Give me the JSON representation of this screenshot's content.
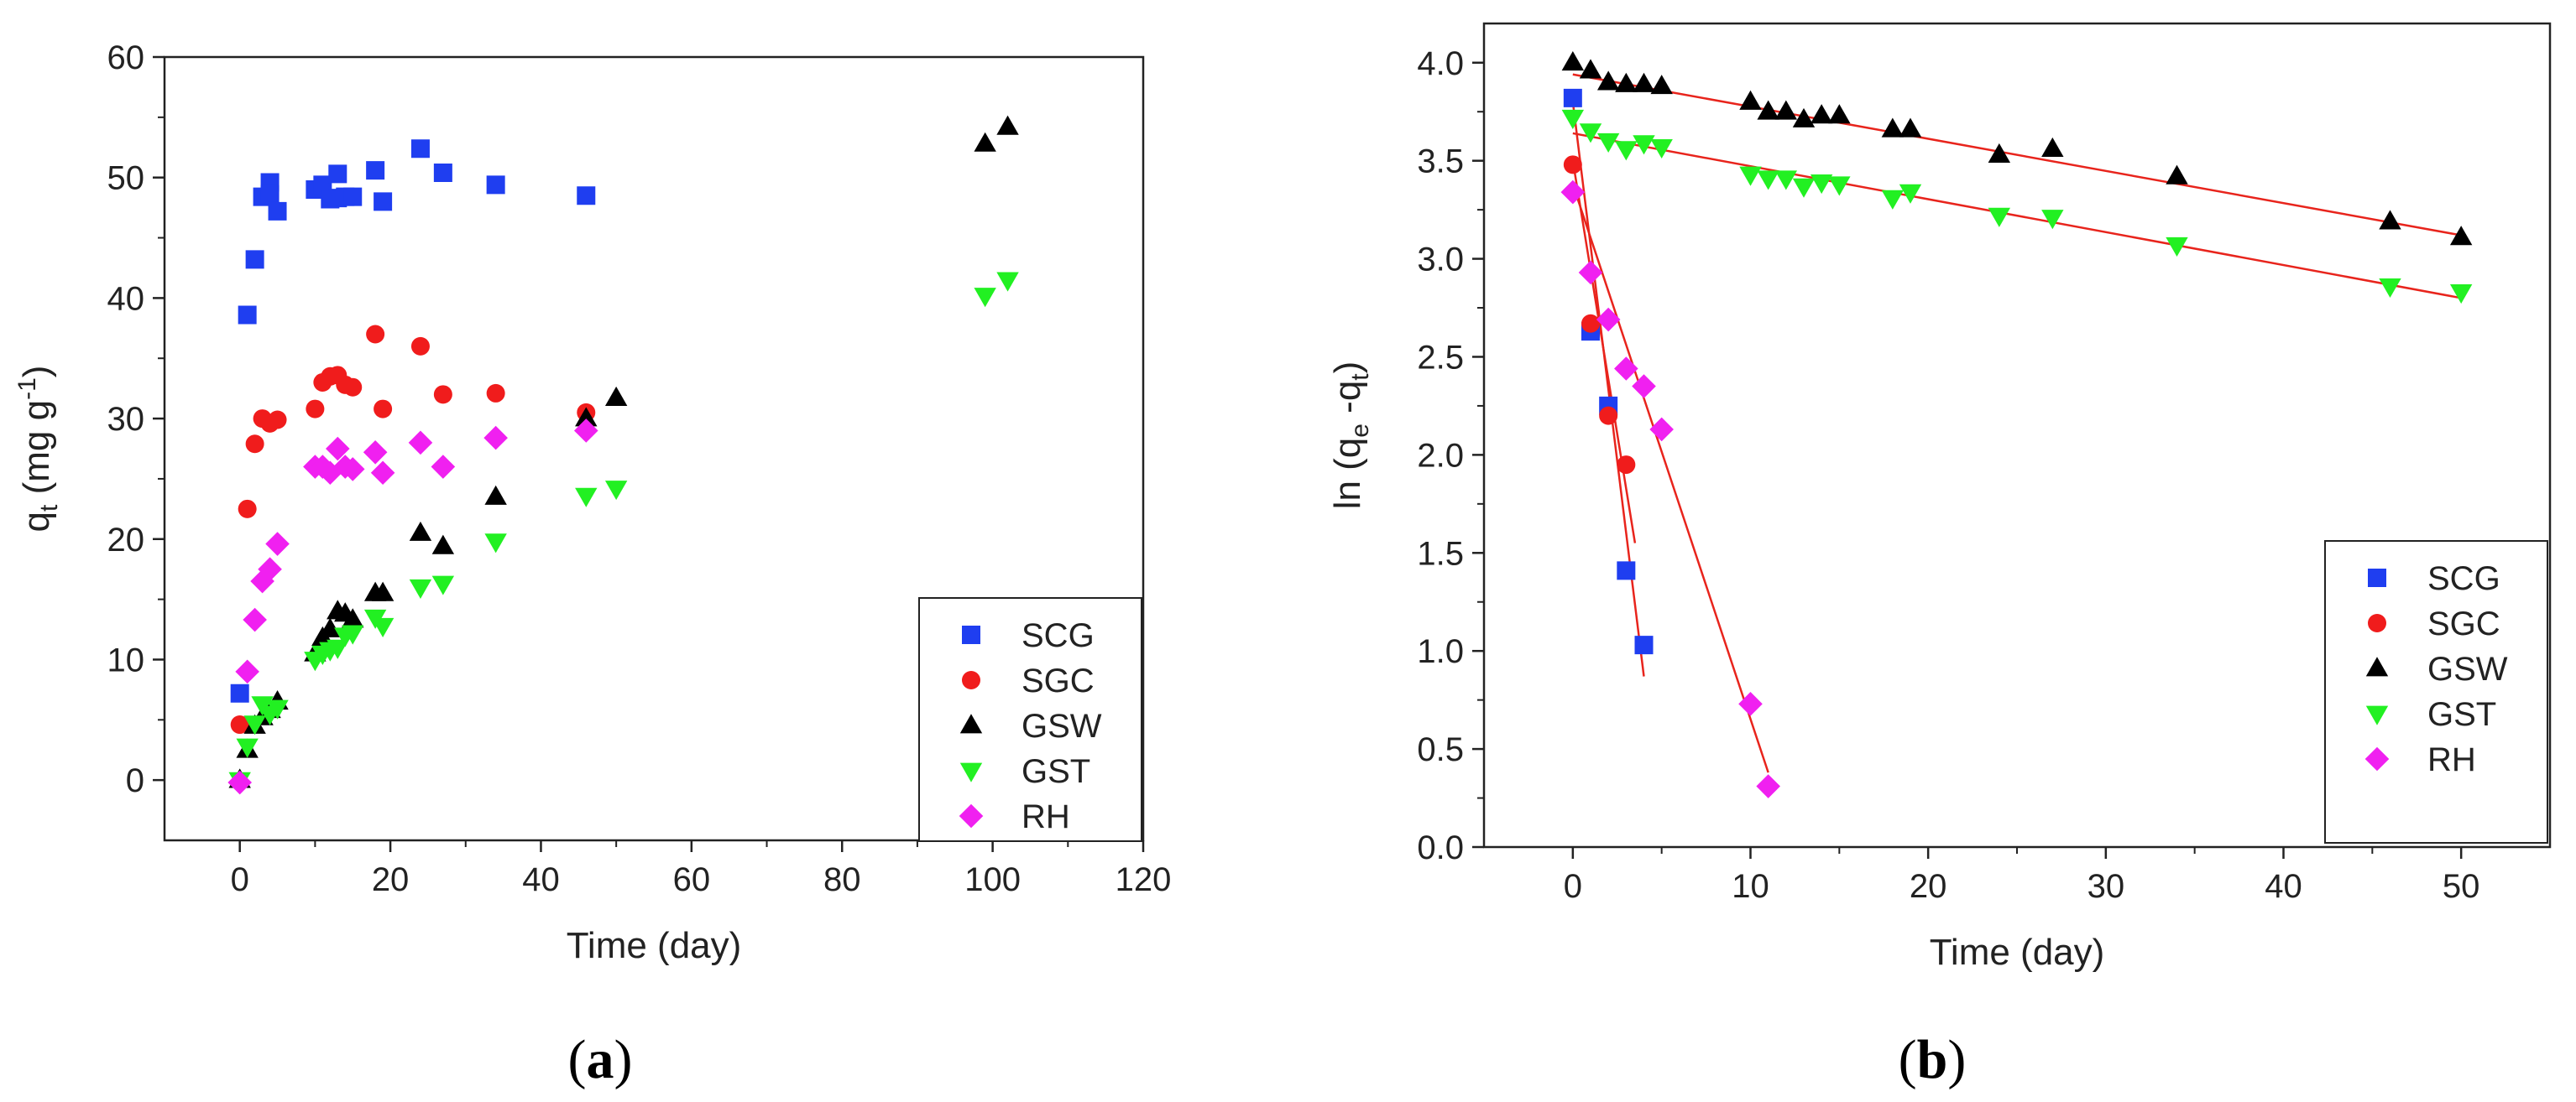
{
  "colors": {
    "SCG": "#1f3ef0",
    "SGC": "#f01c1c",
    "GSW": "#000000",
    "GST": "#22f022",
    "RH": "#f020f0",
    "fit_line": "#e8241c",
    "axis": "#222222"
  },
  "markers": {
    "SCG": "square",
    "SGC": "circle",
    "GSW": "triangle-up",
    "GST": "triangle-down",
    "RH": "diamond"
  },
  "chart_data": [
    {
      "type": "scatter",
      "panel_label": "(a)",
      "panel_letter": "a",
      "xlabel": "Time (day)",
      "ylabel_parts": [
        "q",
        "t",
        " (mg g",
        "-1",
        ")"
      ],
      "xlim": [
        -10,
        120
      ],
      "ylim": [
        -5,
        60
      ],
      "x_ticks": [
        0,
        20,
        40,
        60,
        80,
        100,
        120
      ],
      "y_ticks": [
        0,
        10,
        20,
        30,
        40,
        50,
        60
      ],
      "legend_position": "bottom-right",
      "series": [
        {
          "name": "SCG",
          "x": [
            0,
            1,
            2,
            3,
            4,
            4,
            5,
            10,
            11,
            12,
            13,
            13,
            14,
            15,
            18,
            19,
            24,
            27,
            34,
            46
          ],
          "y": [
            7.2,
            38.6,
            43.2,
            48.4,
            49.6,
            48.6,
            47.2,
            49,
            49.4,
            48.2,
            50.3,
            48.3,
            48.4,
            48.4,
            50.6,
            48,
            52.4,
            50.4,
            49.4,
            48.5
          ]
        },
        {
          "name": "SGC",
          "x": [
            0,
            1,
            2,
            3,
            4,
            5,
            10,
            11,
            12,
            13,
            14,
            15,
            18,
            19,
            24,
            27,
            34,
            46
          ],
          "y": [
            4.6,
            22.5,
            27.9,
            30,
            29.6,
            29.9,
            30.8,
            33,
            33.5,
            33.6,
            32.8,
            32.6,
            37,
            30.8,
            36,
            32,
            32.1,
            30.5
          ]
        },
        {
          "name": "GSW",
          "x": [
            0,
            1,
            2,
            3,
            4,
            5,
            10,
            11,
            12,
            13,
            14,
            15,
            18,
            19,
            24,
            27,
            34,
            46,
            50,
            99,
            102
          ],
          "y": [
            0,
            2.5,
            4.5,
            5.2,
            5.8,
            6.5,
            10.5,
            11.8,
            12.5,
            14,
            13.8,
            13.3,
            15.5,
            15.5,
            20.5,
            19.4,
            23.5,
            30,
            31.7,
            52.8,
            54.2
          ]
        },
        {
          "name": "GST",
          "x": [
            0,
            1,
            2,
            3,
            4,
            5,
            10,
            11,
            12,
            13,
            14,
            15,
            18,
            19,
            24,
            27,
            34,
            46,
            50,
            99,
            102
          ],
          "y": [
            0,
            2.8,
            4.7,
            6.3,
            5.5,
            6,
            10,
            10.5,
            10.8,
            11,
            12,
            12.2,
            13.5,
            12.8,
            16,
            16.3,
            19.8,
            23.6,
            24.2,
            40.2,
            41.5
          ]
        },
        {
          "name": "RH",
          "x": [
            0,
            1,
            2,
            3,
            4,
            5,
            10,
            11,
            12,
            13,
            14,
            15,
            18,
            19,
            24,
            27,
            34,
            46
          ],
          "y": [
            -0.2,
            9,
            13.3,
            16.5,
            17.5,
            19.6,
            26,
            26,
            25.5,
            27.5,
            26,
            25.8,
            27.2,
            25.5,
            28,
            26,
            28.4,
            29
          ]
        }
      ]
    },
    {
      "type": "scatter",
      "panel_label": "(b)",
      "panel_letter": "b",
      "xlabel": "Time (day)",
      "ylabel_parts": [
        "ln (q",
        "e",
        " -q",
        "t",
        ")"
      ],
      "xlim": [
        -5,
        55
      ],
      "ylim": [
        0,
        4.2
      ],
      "x_ticks": [
        0,
        10,
        20,
        30,
        40,
        50
      ],
      "y_ticks": [
        0.0,
        0.5,
        1.0,
        1.5,
        2.0,
        2.5,
        3.0,
        3.5,
        4.0
      ],
      "y_tick_labels": [
        "0.0",
        "0.5",
        "1.0",
        "1.5",
        "2.0",
        "2.5",
        "3.0",
        "3.5",
        "4.0"
      ],
      "legend_position": "bottom-right",
      "series": [
        {
          "name": "SCG",
          "x": [
            0,
            1,
            2,
            3,
            4
          ],
          "y": [
            3.82,
            2.63,
            2.25,
            1.41,
            1.03
          ]
        },
        {
          "name": "SGC",
          "x": [
            0,
            1,
            2,
            3
          ],
          "y": [
            3.48,
            2.67,
            2.2,
            1.95
          ]
        },
        {
          "name": "GSW",
          "x": [
            0,
            1,
            2,
            3,
            4,
            5,
            10,
            11,
            12,
            13,
            14,
            15,
            18,
            19,
            24,
            27,
            34,
            46,
            50
          ],
          "y": [
            4.0,
            3.96,
            3.9,
            3.89,
            3.89,
            3.88,
            3.8,
            3.75,
            3.75,
            3.71,
            3.73,
            3.73,
            3.66,
            3.66,
            3.53,
            3.56,
            3.42,
            3.19,
            3.11
          ]
        },
        {
          "name": "GST",
          "x": [
            0,
            1,
            2,
            3,
            4,
            5,
            10,
            11,
            12,
            13,
            14,
            15,
            18,
            19,
            24,
            27,
            34,
            46,
            50
          ],
          "y": [
            3.72,
            3.65,
            3.6,
            3.56,
            3.59,
            3.57,
            3.43,
            3.41,
            3.41,
            3.37,
            3.39,
            3.38,
            3.31,
            3.34,
            3.22,
            3.21,
            3.07,
            2.86,
            2.83
          ]
        },
        {
          "name": "RH",
          "x": [
            0,
            1,
            2,
            3,
            4,
            5,
            10,
            11
          ],
          "y": [
            3.34,
            2.93,
            2.69,
            2.44,
            2.35,
            2.13,
            0.73,
            0.31
          ]
        }
      ],
      "fit_lines": [
        {
          "series": "GSW",
          "x": [
            0,
            50
          ],
          "y": [
            3.94,
            3.12
          ]
        },
        {
          "series": "GST",
          "x": [
            0,
            50
          ],
          "y": [
            3.64,
            2.8
          ]
        },
        {
          "series": "SCG",
          "x": [
            0,
            4
          ],
          "y": [
            3.8,
            0.87
          ]
        },
        {
          "series": "SGC",
          "x": [
            0,
            3.5
          ],
          "y": [
            3.5,
            1.55
          ]
        },
        {
          "series": "RH",
          "x": [
            0,
            11
          ],
          "y": [
            3.38,
            0.38
          ]
        }
      ]
    }
  ]
}
